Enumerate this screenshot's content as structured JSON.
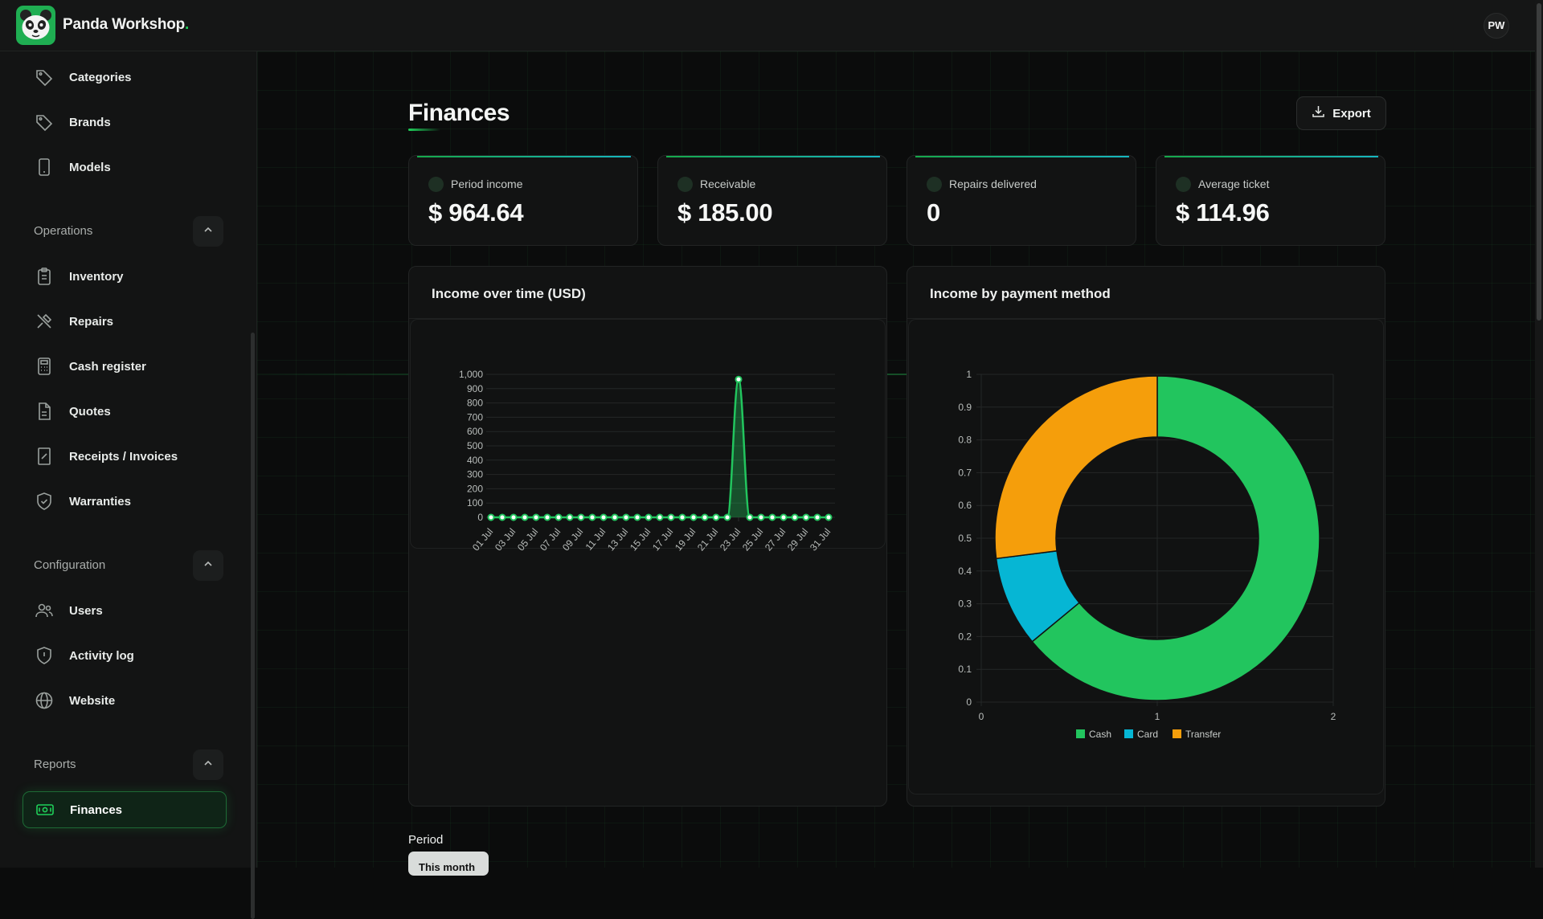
{
  "app": {
    "brand_name": "Panda Workshop",
    "brand_dot": ".",
    "user_initials": "PW"
  },
  "sidebar": {
    "top_items": [
      {
        "label": "Categories",
        "icon": "tag-icon"
      },
      {
        "label": "Brands",
        "icon": "tag-icon"
      },
      {
        "label": "Models",
        "icon": "phone-icon"
      }
    ],
    "sections": [
      {
        "title": "Operations",
        "items": [
          {
            "label": "Inventory",
            "icon": "clipboard-icon"
          },
          {
            "label": "Repairs",
            "icon": "tools-icon"
          },
          {
            "label": "Cash register",
            "icon": "calculator-icon"
          },
          {
            "label": "Quotes",
            "icon": "document-icon"
          },
          {
            "label": "Receipts / Invoices",
            "icon": "receipt-icon"
          },
          {
            "label": "Warranties",
            "icon": "shield-check-icon"
          }
        ]
      },
      {
        "title": "Configuration",
        "items": [
          {
            "label": "Users",
            "icon": "users-icon"
          },
          {
            "label": "Activity log",
            "icon": "shield-alert-icon"
          },
          {
            "label": "Website",
            "icon": "globe-icon"
          }
        ]
      },
      {
        "title": "Reports",
        "items": [
          {
            "label": "Finances",
            "icon": "money-icon",
            "active": true
          }
        ]
      }
    ]
  },
  "page": {
    "title": "Finances",
    "export_label": "Export"
  },
  "stats": [
    {
      "label": "Period income",
      "value": "$ 964.64"
    },
    {
      "label": "Receivable",
      "value": "$ 185.00"
    },
    {
      "label": "Repairs delivered",
      "value": "0"
    },
    {
      "label": "Average ticket",
      "value": "$ 114.96"
    }
  ],
  "filters": {
    "period_label": "Period",
    "period_value": "This month"
  },
  "colors": {
    "accent": "#1fd05a",
    "cash": "#22c55e",
    "card": "#06b6d4",
    "transfer": "#f59e0b"
  },
  "chart_data": [
    {
      "type": "line",
      "title": "Income over time (USD)",
      "x": [
        "01 Jul",
        "02 Jul",
        "03 Jul",
        "04 Jul",
        "05 Jul",
        "06 Jul",
        "07 Jul",
        "08 Jul",
        "09 Jul",
        "10 Jul",
        "11 Jul",
        "12 Jul",
        "13 Jul",
        "14 Jul",
        "15 Jul",
        "16 Jul",
        "17 Jul",
        "18 Jul",
        "19 Jul",
        "20 Jul",
        "21 Jul",
        "22 Jul",
        "23 Jul",
        "24 Jul",
        "25 Jul",
        "26 Jul",
        "27 Jul",
        "28 Jul",
        "29 Jul",
        "30 Jul",
        "31 Jul"
      ],
      "x_tick_labels": [
        "01 Jul",
        "03 Jul",
        "05 Jul",
        "07 Jul",
        "09 Jul",
        "11 Jul",
        "13 Jul",
        "15 Jul",
        "17 Jul",
        "19 Jul",
        "21 Jul",
        "23 Jul",
        "25 Jul",
        "27 Jul",
        "29 Jul",
        "31 Jul"
      ],
      "values": [
        0,
        0,
        0,
        0,
        0,
        0,
        0,
        0,
        0,
        0,
        0,
        0,
        0,
        0,
        0,
        0,
        0,
        0,
        0,
        0,
        0,
        0,
        964.64,
        0,
        0,
        0,
        0,
        0,
        0,
        0,
        0
      ],
      "ylim": [
        0,
        1000
      ],
      "y_ticks": [
        "0",
        "100",
        "200",
        "300",
        "400",
        "500",
        "600",
        "700",
        "800",
        "900",
        "1,000"
      ],
      "grid": true
    },
    {
      "type": "pie",
      "title": "Income by payment method",
      "labels": [
        "Cash",
        "Card",
        "Transfer"
      ],
      "values": [
        0.64,
        0.09,
        0.27
      ],
      "y_ticks": [
        "0",
        "0.1",
        "0.2",
        "0.3",
        "0.4",
        "0.5",
        "0.6",
        "0.7",
        "0.8",
        "0.9",
        "1"
      ],
      "x_ticks": [
        "0",
        "1",
        "2"
      ],
      "legend": "bottom"
    }
  ]
}
